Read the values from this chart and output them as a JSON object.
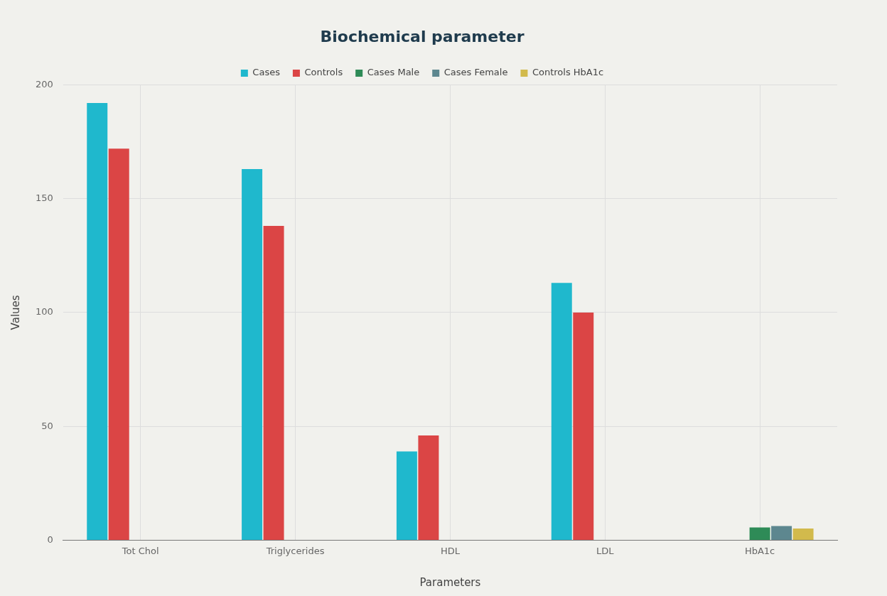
{
  "chart_data": {
    "type": "bar",
    "title": "Biochemical parameter",
    "xlabel": "Parameters",
    "ylabel": "Values",
    "categories": [
      "Tot Chol",
      "Triglycerides",
      "HDL",
      "LDL",
      "HbA1c"
    ],
    "series": [
      {
        "name": "Cases",
        "color": "#1fb8cd",
        "values": [
          192,
          163,
          39,
          113,
          null
        ]
      },
      {
        "name": "Controls",
        "color": "#db4545",
        "values": [
          172,
          138,
          46,
          100,
          null
        ]
      },
      {
        "name": "Cases Male",
        "color": "#2e8b57",
        "values": [
          null,
          null,
          null,
          null,
          5.6
        ]
      },
      {
        "name": "Cases Female",
        "color": "#5d878f",
        "values": [
          null,
          null,
          null,
          null,
          6.2
        ]
      },
      {
        "name": "Controls HbA1c",
        "color": "#d2ba4c",
        "values": [
          null,
          null,
          null,
          null,
          5.1
        ]
      }
    ],
    "ylim": [
      0,
      200
    ],
    "yticks": [
      0,
      50,
      100,
      150,
      200
    ],
    "grid": true,
    "legend": "top"
  }
}
